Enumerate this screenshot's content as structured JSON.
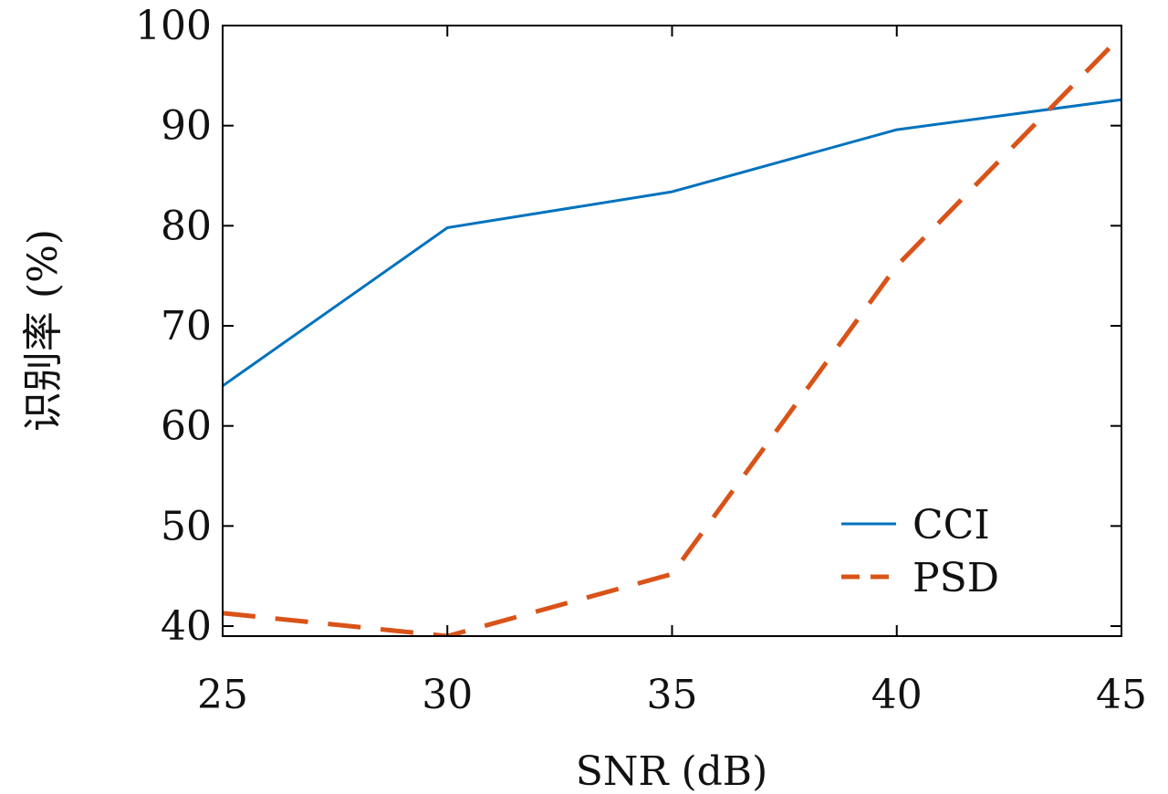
{
  "chart_data": {
    "type": "line",
    "xlabel": "SNR (dB)",
    "ylabel": "识别率 (%)",
    "xlim": [
      25,
      45
    ],
    "ylim": [
      39,
      100
    ],
    "xticks": [
      25,
      30,
      35,
      40,
      45
    ],
    "yticks": [
      40,
      50,
      60,
      70,
      80,
      90,
      100
    ],
    "grid": false,
    "legend_position": "lower-right",
    "series": [
      {
        "name": "CCI",
        "color": "#0072bd",
        "line_style": "solid",
        "x": [
          25,
          30,
          35,
          40,
          45
        ],
        "y": [
          64.0,
          79.8,
          83.4,
          89.6,
          92.6
        ]
      },
      {
        "name": "PSD",
        "color": "#d95319",
        "line_style": "dashed",
        "x": [
          25,
          30,
          35,
          40,
          45
        ],
        "y": [
          41.3,
          39.0,
          45.2,
          76.0,
          99.0
        ]
      }
    ]
  }
}
